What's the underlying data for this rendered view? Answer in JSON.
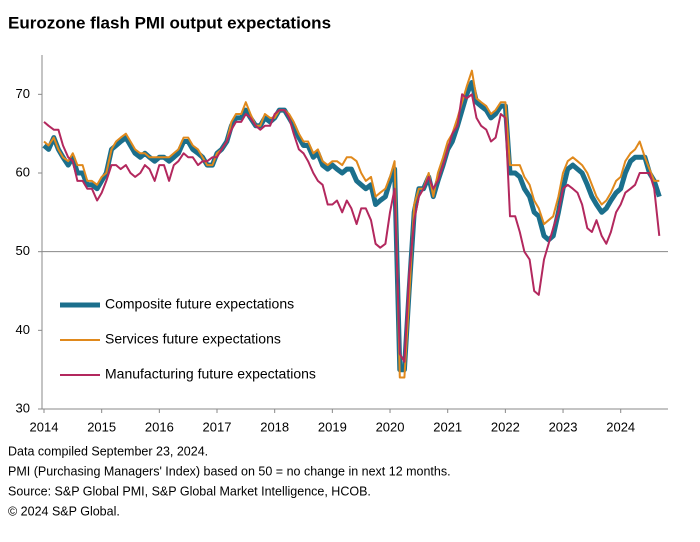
{
  "chart_data": {
    "type": "line",
    "title": "Eurozone flash PMI output expectations",
    "x": [
      2014,
      2014.08,
      2014.17,
      2014.25,
      2014.33,
      2014.42,
      2014.5,
      2014.58,
      2014.67,
      2014.75,
      2014.83,
      2014.92,
      2015,
      2015.08,
      2015.17,
      2015.25,
      2015.33,
      2015.42,
      2015.5,
      2015.58,
      2015.67,
      2015.75,
      2015.83,
      2015.92,
      2016,
      2016.08,
      2016.17,
      2016.25,
      2016.33,
      2016.42,
      2016.5,
      2016.58,
      2016.67,
      2016.75,
      2016.83,
      2016.92,
      2017,
      2017.08,
      2017.17,
      2017.25,
      2017.33,
      2017.42,
      2017.5,
      2017.58,
      2017.67,
      2017.75,
      2017.83,
      2017.92,
      2018,
      2018.08,
      2018.17,
      2018.25,
      2018.33,
      2018.42,
      2018.5,
      2018.58,
      2018.67,
      2018.75,
      2018.83,
      2018.92,
      2019,
      2019.08,
      2019.17,
      2019.25,
      2019.33,
      2019.42,
      2019.5,
      2019.58,
      2019.67,
      2019.75,
      2019.83,
      2019.92,
      2020,
      2020.08,
      2020.17,
      2020.25,
      2020.33,
      2020.42,
      2020.5,
      2020.58,
      2020.67,
      2020.75,
      2020.83,
      2020.92,
      2021,
      2021.08,
      2021.17,
      2021.25,
      2021.33,
      2021.42,
      2021.5,
      2021.58,
      2021.67,
      2021.75,
      2021.83,
      2021.92,
      2022,
      2022.08,
      2022.17,
      2022.25,
      2022.33,
      2022.42,
      2022.5,
      2022.58,
      2022.67,
      2022.75,
      2022.83,
      2022.92,
      2023,
      2023.08,
      2023.17,
      2023.25,
      2023.33,
      2023.42,
      2023.5,
      2023.58,
      2023.67,
      2023.75,
      2023.83,
      2023.92,
      2024,
      2024.08,
      2024.17,
      2024.25,
      2024.33,
      2024.42,
      2024.5,
      2024.58,
      2024.67
    ],
    "series": [
      {
        "name": "Composite future expectations",
        "color": "#1b6f8c",
        "width": 5,
        "values": [
          63.5,
          63,
          64.5,
          63,
          62,
          61,
          62,
          60,
          60,
          58.5,
          58.5,
          58,
          59,
          60,
          63,
          63.5,
          64,
          64.5,
          63.5,
          62.5,
          62,
          62.5,
          62,
          61.5,
          62,
          62,
          61.5,
          62,
          62.5,
          64,
          64,
          63,
          62.5,
          62,
          61,
          61,
          62.5,
          63,
          64,
          66,
          67,
          67,
          68,
          67,
          66,
          66,
          67,
          66.5,
          67,
          68,
          68,
          67,
          66,
          64.5,
          63.5,
          63.5,
          62,
          62.5,
          61,
          60.5,
          61,
          60.5,
          60,
          60.5,
          60.5,
          59,
          58.5,
          58,
          58.5,
          56,
          56.5,
          57,
          59,
          60.5,
          35,
          35,
          45,
          55,
          58,
          58,
          59.5,
          57,
          59,
          61,
          63,
          64,
          66,
          68,
          70,
          71.5,
          69,
          68.5,
          68,
          67,
          67.5,
          68.5,
          68.5,
          60,
          60,
          59.5,
          58,
          57,
          55,
          54.5,
          52,
          51.5,
          52,
          55,
          58,
          60.5,
          61,
          60.5,
          60,
          58.5,
          57,
          56,
          55,
          55.5,
          56.5,
          57.5,
          58,
          60,
          61.5,
          62,
          62,
          62,
          60,
          59,
          57
        ]
      },
      {
        "name": "Services future expectations",
        "color": "#e0891c",
        "width": 2,
        "values": [
          64,
          63.5,
          64.5,
          63,
          62,
          61.5,
          62.5,
          61,
          61,
          59,
          59,
          58.5,
          59.5,
          60,
          63,
          64,
          64.5,
          65,
          64,
          63,
          62.5,
          62.5,
          62,
          62,
          62,
          62,
          62,
          62.5,
          63,
          64.5,
          64.5,
          63.5,
          63,
          62,
          61,
          61,
          62.5,
          63,
          64,
          66.5,
          67.5,
          67.5,
          69,
          67.5,
          66,
          66,
          67.5,
          67,
          67,
          68,
          68,
          67.5,
          66.5,
          65,
          64,
          64,
          62.5,
          63,
          61.5,
          61,
          61.5,
          61.5,
          61,
          62,
          62,
          61.5,
          60,
          59,
          59.5,
          57,
          57.5,
          58,
          59.5,
          61.5,
          34,
          34,
          44,
          56,
          58,
          58,
          60,
          57,
          60,
          62,
          64,
          65,
          67,
          69,
          71,
          73,
          69.5,
          69,
          68.5,
          67.5,
          68,
          69,
          69,
          61,
          61,
          61,
          59.5,
          58.5,
          56.5,
          55.5,
          53.5,
          54,
          54.5,
          57,
          60,
          61.5,
          62,
          61.5,
          61,
          60,
          58.5,
          57,
          56,
          56.5,
          57.5,
          59,
          59.5,
          61.5,
          62.5,
          63,
          64,
          62,
          60.5,
          59,
          59
        ]
      },
      {
        "name": "Manufacturing future expectations",
        "color": "#b3285e",
        "width": 2,
        "values": [
          66.5,
          66,
          65.5,
          65.5,
          63.5,
          62,
          61.5,
          59,
          59,
          58,
          58,
          56.5,
          57.5,
          59,
          61,
          61,
          60.5,
          61,
          60,
          59.5,
          60,
          61,
          60.5,
          59,
          61,
          61,
          59,
          61,
          61.5,
          62.5,
          62,
          62,
          61,
          61.5,
          61.5,
          62,
          62,
          63,
          64,
          65.5,
          66.5,
          66.5,
          67.5,
          67,
          66,
          65.5,
          66,
          66,
          67.5,
          68,
          68,
          67,
          65,
          63,
          62.5,
          61.5,
          60,
          59,
          58.5,
          56,
          56,
          56.5,
          55,
          56.5,
          55.5,
          53.5,
          55.5,
          55.5,
          54,
          51,
          50.5,
          51,
          55,
          58,
          37,
          36,
          47,
          54,
          57,
          58,
          59.5,
          58,
          59,
          61,
          63,
          65,
          66,
          70,
          69.5,
          70,
          67,
          66,
          65.5,
          64,
          64.5,
          67.5,
          67,
          54.5,
          54.5,
          52.5,
          50,
          49,
          45,
          44.5,
          49,
          51,
          53,
          55,
          58,
          58.5,
          58,
          57.5,
          56,
          53,
          52.5,
          54,
          52,
          51,
          52.5,
          55,
          56,
          57.5,
          58,
          58.5,
          60,
          60,
          60,
          58,
          52
        ]
      }
    ],
    "xlim": [
      2014,
      2024.82
    ],
    "xticks": [
      2014,
      2015,
      2016,
      2017,
      2018,
      2019,
      2020,
      2021,
      2022,
      2023,
      2024
    ],
    "ylim": [
      30,
      75
    ],
    "yticks": [
      30,
      40,
      50,
      60,
      70
    ],
    "hline": 50,
    "legend": "lower-left",
    "notes": [
      "Data compiled September  23, 2024.",
      "PMI (Purchasing Managers' Index) based on 50 = no change in next 12 months.",
      "Source: S&P Global PMI, S&P Global Market Intelligence, HCOB.",
      "© 2024 S&P Global."
    ]
  }
}
